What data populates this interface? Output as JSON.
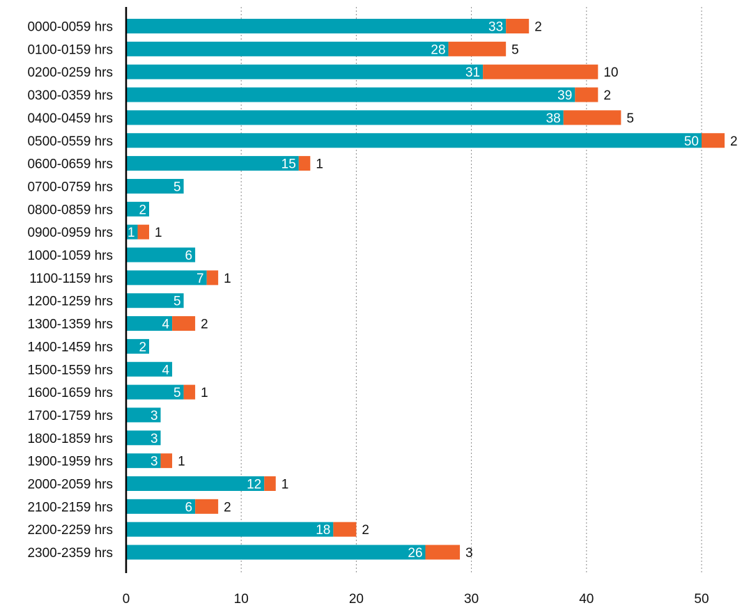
{
  "chart_data": {
    "type": "bar",
    "orientation": "horizontal",
    "stacked": true,
    "title": "",
    "xlabel": "",
    "ylabel": "",
    "xlim": [
      0,
      53
    ],
    "xticks": [
      0,
      10,
      20,
      30,
      40,
      50
    ],
    "grid": "vertical dotted",
    "legend": "none",
    "categories": [
      "0000-0059 hrs",
      "0100-0159 hrs",
      "0200-0259 hrs",
      "0300-0359 hrs",
      "0400-0459 hrs",
      "0500-0559 hrs",
      "0600-0659 hrs",
      "0700-0759 hrs",
      "0800-0859 hrs",
      "0900-0959 hrs",
      "1000-1059 hrs",
      "1100-1159 hrs",
      "1200-1259 hrs",
      "1300-1359 hrs",
      "1400-1459 hrs",
      "1500-1559 hrs",
      "1600-1659 hrs",
      "1700-1759 hrs",
      "1800-1859 hrs",
      "1900-1959 hrs",
      "2000-2059 hrs",
      "2100-2159 hrs",
      "2200-2259 hrs",
      "2300-2359 hrs"
    ],
    "series": [
      {
        "color": "#00a0b4",
        "values": [
          33,
          28,
          31,
          39,
          38,
          50,
          15,
          5,
          2,
          1,
          6,
          7,
          5,
          4,
          2,
          4,
          5,
          3,
          3,
          3,
          12,
          6,
          18,
          26
        ]
      },
      {
        "color": "#f0642a",
        "values": [
          2,
          5,
          10,
          2,
          5,
          2,
          1,
          0,
          0,
          1,
          0,
          1,
          0,
          2,
          0,
          0,
          1,
          0,
          0,
          1,
          1,
          2,
          2,
          3
        ]
      }
    ]
  }
}
